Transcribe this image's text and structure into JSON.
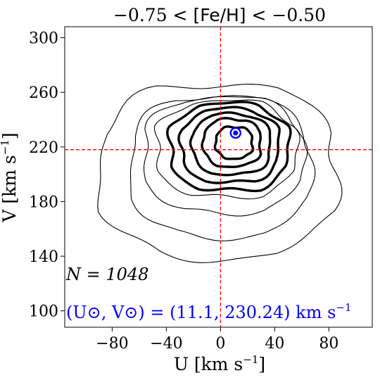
{
  "chart_data": {
    "type": "contour",
    "title": {
      "left": "−0.75 < ",
      "middle": "[Fe/H]",
      "right": " < −0.50"
    },
    "xlabel": "U [km s",
    "xlabel_sup": "−1",
    "xlabel_end": "]",
    "ylabel": "V [km s",
    "ylabel_sup": "−1",
    "ylabel_end": "]",
    "xlim": [
      -115,
      112
    ],
    "ylim": [
      88,
      308
    ],
    "xticks": [
      -80,
      -40,
      0,
      40,
      80
    ],
    "xtick_labels": [
      "−80",
      "−40",
      "0",
      "40",
      "80"
    ],
    "yticks": [
      100,
      140,
      180,
      220,
      260,
      300
    ],
    "ytick_labels": [
      "100",
      "140",
      "180",
      "220",
      "260",
      "300"
    ],
    "reference_lines": {
      "u": 0,
      "v": 218,
      "color": "#ff0000"
    },
    "sun": {
      "u": 11.1,
      "v": 230.24,
      "color": "#0000ff"
    },
    "annotations": {
      "n_label": "N = 1048",
      "sun_label": "(U⊙, V⊙) = (11.1, 230.24) km s",
      "sun_label_sup": "−1"
    },
    "contour_levels": [
      {
        "level": 1,
        "weight": "thin",
        "bounds": {
          "u": [
            -99,
            95
          ],
          "v": [
            136,
            268
          ]
        }
      },
      {
        "level": 2,
        "weight": "thin",
        "bounds": {
          "u": [
            -74,
            74
          ],
          "v": [
            152,
            259
          ]
        }
      },
      {
        "level": 3,
        "weight": "thin",
        "bounds": {
          "u": [
            -63,
            68
          ],
          "v": [
            170,
            258
          ]
        }
      },
      {
        "level": 4,
        "weight": "thin",
        "bounds": {
          "u": [
            -53,
            62
          ],
          "v": [
            182,
            255
          ]
        }
      },
      {
        "level": 5,
        "weight": "thick",
        "bounds": {
          "u": [
            -42,
            55
          ],
          "v": [
            187,
            253
          ]
        }
      },
      {
        "level": 6,
        "weight": "thick",
        "bounds": {
          "u": [
            -33,
            47
          ],
          "v": [
            193,
            249
          ]
        }
      },
      {
        "level": 7,
        "weight": "thick",
        "bounds": {
          "u": [
            -24,
            40
          ],
          "v": [
            199,
            245
          ]
        }
      },
      {
        "level": 8,
        "weight": "thick",
        "bounds": {
          "u": [
            -15,
            32
          ],
          "v": [
            205,
            241
          ]
        }
      },
      {
        "level": 9,
        "weight": "thick",
        "bounds": {
          "u": [
            -5,
            25
          ],
          "v": [
            211,
            235
          ]
        }
      }
    ]
  }
}
